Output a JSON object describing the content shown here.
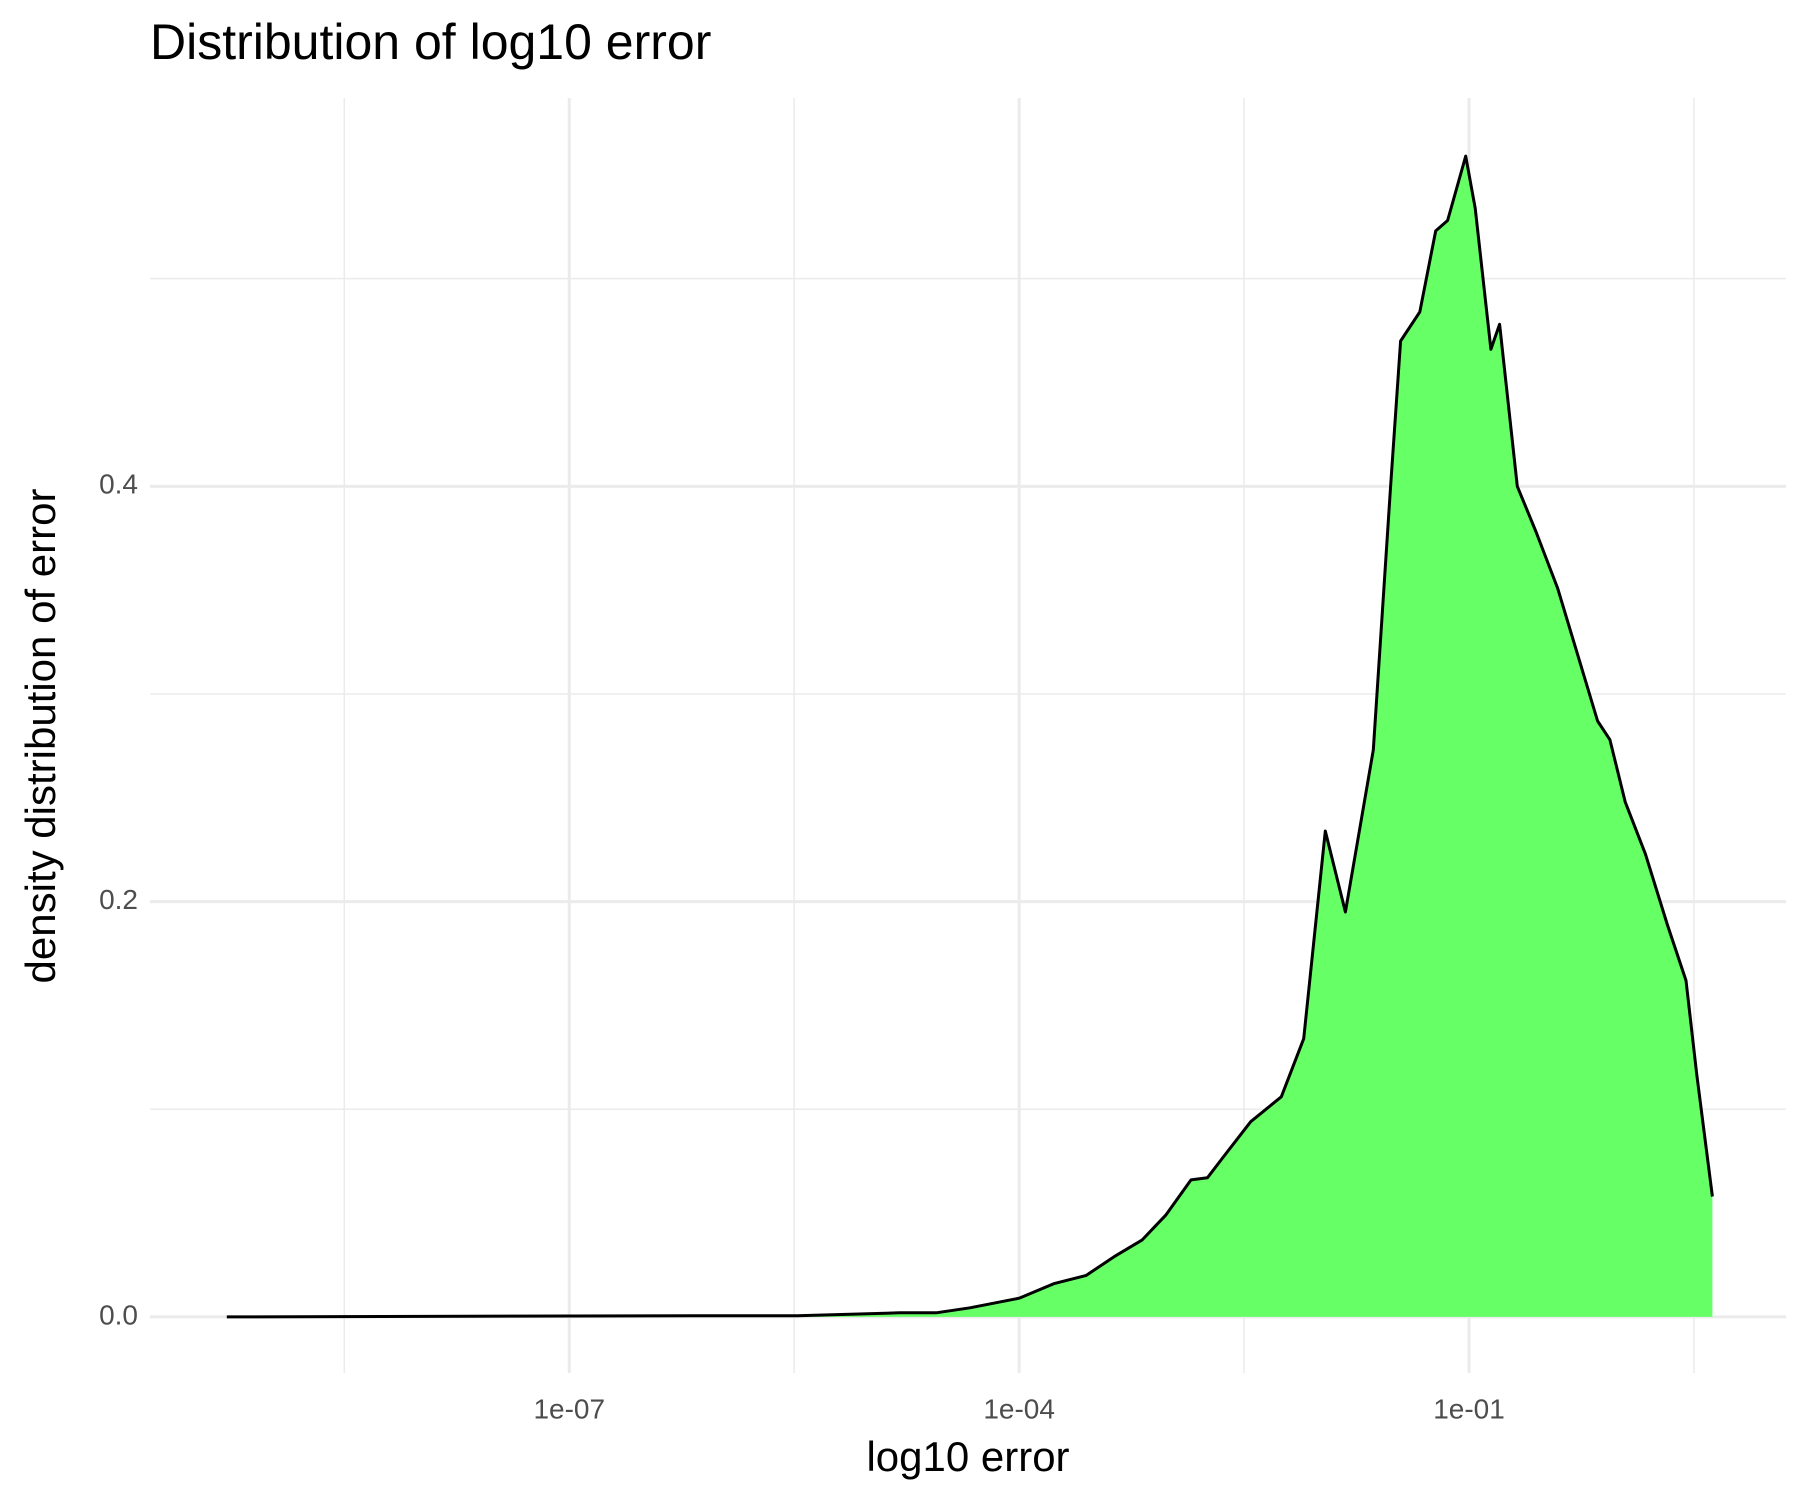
{
  "chart_data": {
    "type": "area",
    "title": "Distribution of log10 error",
    "x_label": "log10 error",
    "y_label": "density distribution of error",
    "x": [
      5.2e-10,
      6.6e-07,
      3.3e-06,
      1.6e-05,
      2.8e-05,
      4.7e-05,
      0.0001,
      0.00017,
      0.00028,
      0.00043,
      0.00066,
      0.00095,
      0.0014,
      0.0018,
      0.0023,
      0.0035,
      0.0056,
      0.0079,
      0.011,
      0.015,
      0.023,
      0.03,
      0.035,
      0.047,
      0.06,
      0.072,
      0.095,
      0.11,
      0.14,
      0.16,
      0.21,
      0.28,
      0.39,
      0.51,
      0.72,
      0.87,
      1.1,
      1.5,
      2.1,
      2.8,
      3.3,
      4.2
    ],
    "values": [
      0,
      0.0006,
      0.0006,
      0.002,
      0.002,
      0.0044,
      0.009,
      0.016,
      0.02,
      0.029,
      0.037,
      0.049,
      0.066,
      0.067,
      0.077,
      0.094,
      0.106,
      0.134,
      0.234,
      0.195,
      0.273,
      0.4,
      0.47,
      0.484,
      0.523,
      0.528,
      0.559,
      0.534,
      0.466,
      0.478,
      0.4,
      0.378,
      0.351,
      0.323,
      0.287,
      0.278,
      0.248,
      0.223,
      0.189,
      0.162,
      0.117,
      0.058
    ],
    "color": "#66ff66",
    "line_color": "#000000",
    "x_log": true,
    "xlim": [
      1.6e-10,
      13
    ],
    "xticks": [
      {
        "value": 1e-07,
        "label": "1e-07"
      },
      {
        "value": 0.0001,
        "label": "1e-04"
      },
      {
        "value": 0.1,
        "label": "1e-01"
      }
    ],
    "x_minor_ticks": [
      3.16e-09,
      3.16e-06,
      0.00316,
      3.16
    ],
    "ylim": [
      -0.027,
      0.587
    ],
    "yticks": [
      {
        "value": 0,
        "label": "0.0"
      },
      0.2,
      0.4
    ],
    "y_minor_ticks": [
      0.1,
      0.3,
      0.5
    ],
    "grid": true
  }
}
